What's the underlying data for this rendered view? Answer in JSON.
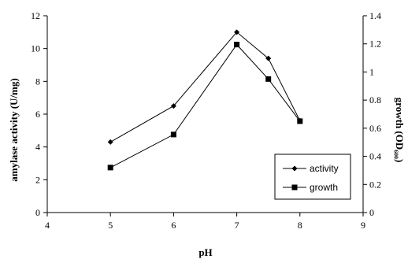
{
  "chart_data": {
    "type": "line",
    "xlabel": "pH",
    "ylabel_left": "amylase activity (U/mg)",
    "ylabel_right": "growth (OD₆₀₀)",
    "xlim": [
      4,
      9
    ],
    "ylim_left": [
      0,
      12
    ],
    "ylim_right": [
      0,
      1.4
    ],
    "x_ticks": [
      "4",
      "5",
      "6",
      "7",
      "8",
      "9"
    ],
    "y_left_ticks": [
      "0",
      "2",
      "4",
      "6",
      "8",
      "10",
      "12"
    ],
    "y_right_ticks": [
      "0",
      "0.2",
      "0.4",
      "0.6",
      "0.8",
      "1",
      "1.2",
      "1.4"
    ],
    "grid": false,
    "legend_position": "bottom-right",
    "series": [
      {
        "name": "activity",
        "axis": "left",
        "marker": "diamond",
        "color": "#000000",
        "x": [
          5,
          6,
          7,
          7.5,
          8
        ],
        "y": [
          4.3,
          6.5,
          11.0,
          9.4,
          5.6
        ]
      },
      {
        "name": "growth",
        "axis": "right",
        "marker": "square",
        "color": "#000000",
        "x": [
          5,
          6,
          7,
          7.5,
          8
        ],
        "y": [
          0.32,
          0.555,
          1.195,
          0.95,
          0.65
        ]
      }
    ]
  }
}
